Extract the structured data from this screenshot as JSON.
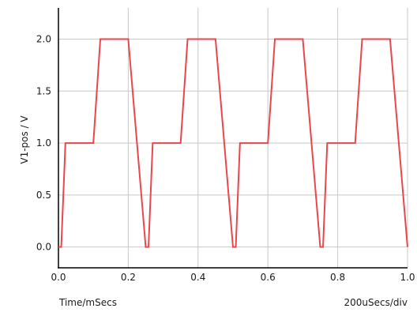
{
  "chart_data": {
    "type": "line",
    "title": "",
    "xlabel": "Time/mSecs",
    "ylabel": "V1-pos / V",
    "scale_label": "200uSecs/div",
    "xlim": [
      0,
      1.0
    ],
    "ylim": [
      -0.2,
      2.3
    ],
    "grid": true,
    "x_ticks": [
      0.0,
      0.2,
      0.4,
      0.6,
      0.8,
      1.0
    ],
    "x_tick_labels": [
      "0.0",
      "0.2",
      "0.4",
      "0.6",
      "0.8",
      "1.0"
    ],
    "y_ticks": [
      0.0,
      0.5,
      1.0,
      1.5,
      2.0
    ],
    "y_tick_labels": [
      "0.0",
      "0.5",
      "1.0",
      "1.5",
      "2.0"
    ],
    "series": [
      {
        "color": "#e8474b",
        "x": [
          0.0,
          0.008,
          0.02,
          0.1,
          0.12,
          0.2,
          0.25,
          0.258,
          0.27,
          0.35,
          0.37,
          0.45,
          0.5,
          0.508,
          0.52,
          0.6,
          0.62,
          0.7,
          0.75,
          0.758,
          0.77,
          0.85,
          0.87,
          0.95,
          1.0
        ],
        "y": [
          0.0,
          0.0,
          1.0,
          1.0,
          2.0,
          2.0,
          0.0,
          0.0,
          1.0,
          1.0,
          2.0,
          2.0,
          0.0,
          0.0,
          1.0,
          1.0,
          2.0,
          2.0,
          0.0,
          0.0,
          1.0,
          1.0,
          2.0,
          2.0,
          0.0
        ]
      }
    ]
  }
}
